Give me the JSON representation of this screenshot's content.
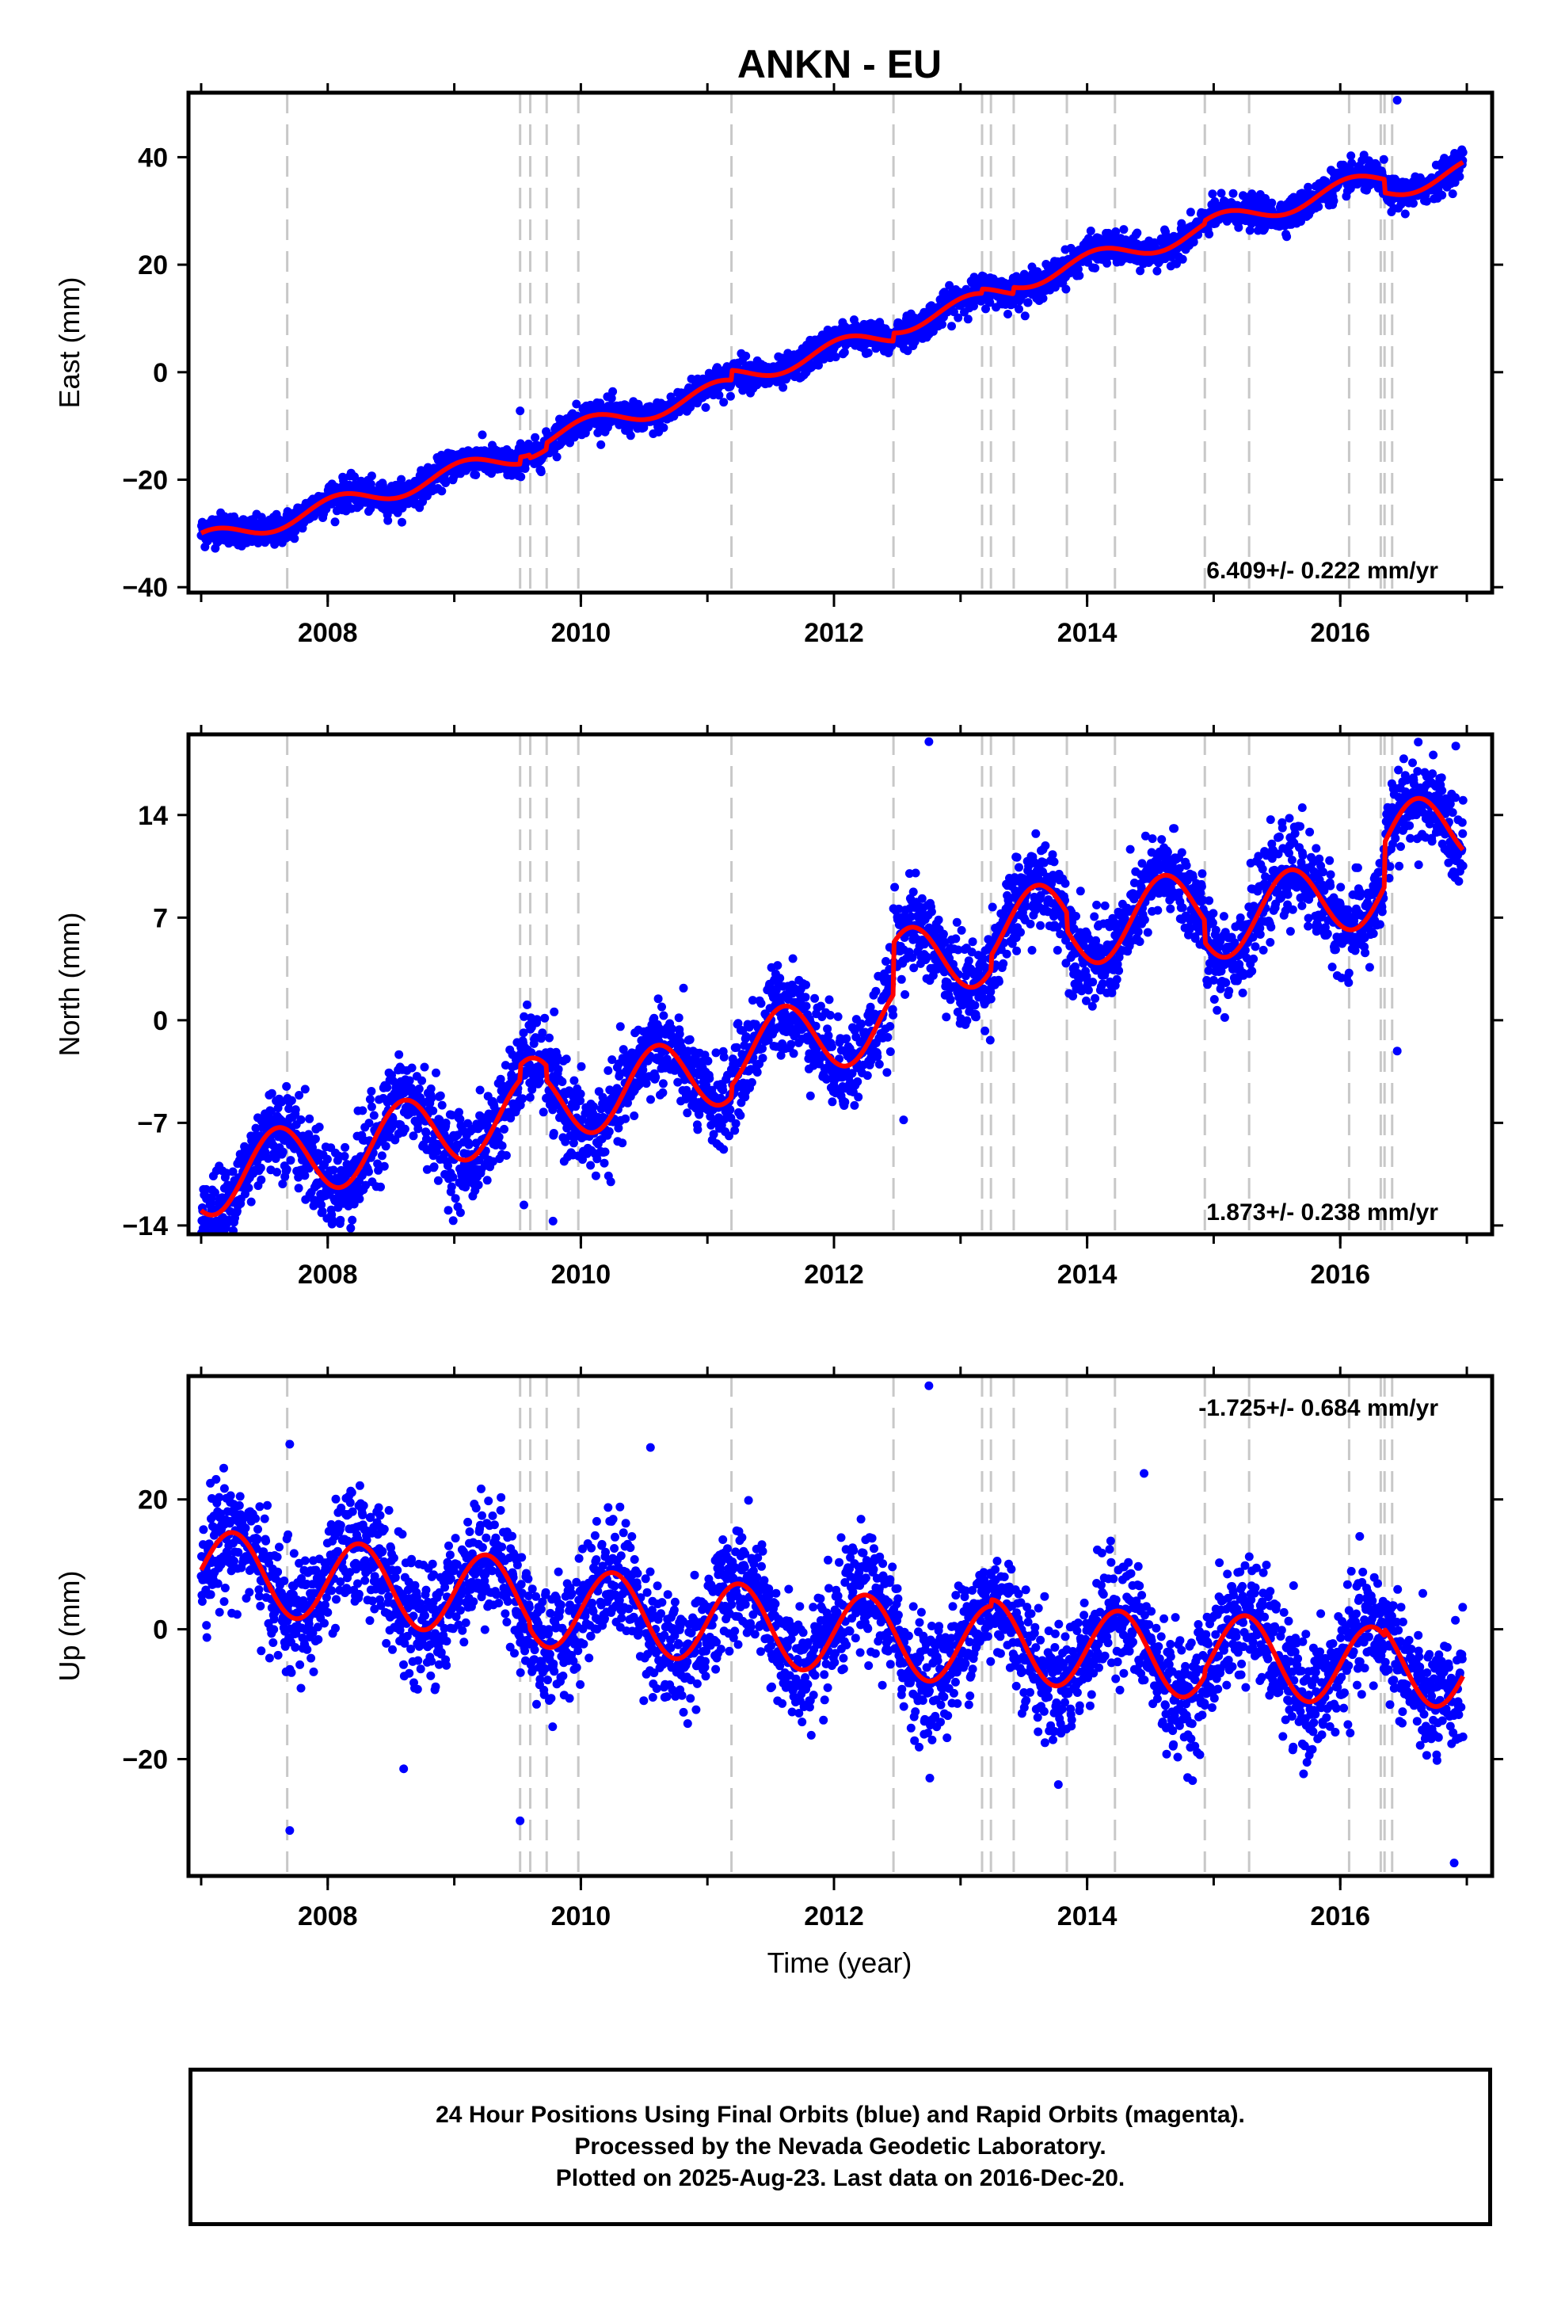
{
  "title": "ANKN - EU",
  "x_axis_label": "Time (year)",
  "x_ticks": [
    "2008",
    "2010",
    "2012",
    "2014",
    "2016"
  ],
  "footer": {
    "line1": "24 Hour Positions Using Final Orbits (blue) and Rapid Orbits (magenta).",
    "line2": "Processed by the Nevada Geodetic Laboratory.",
    "line3": "Plotted on 2025-Aug-23. Last data on 2016-Dec-20."
  },
  "colors": {
    "points": "#0000ff",
    "model": "#ff0000",
    "steps": "#c8c8c8",
    "frame": "#000000"
  },
  "chart_data": [
    {
      "type": "scatter",
      "ylabel": "East (mm)",
      "xlim": [
        2006.9,
        2017.2
      ],
      "ylim": [
        -41,
        52
      ],
      "yticks": [
        -40,
        -20,
        0,
        20,
        40
      ],
      "yticklabels": [
        "−40",
        "−20",
        "0",
        "20",
        "40"
      ],
      "rate_text": "6.409+/- 0.222 mm/yr",
      "rate_position": "bottom-right",
      "step_epochs": [
        2007.68,
        2009.52,
        2009.6,
        2009.73,
        2009.98,
        2011.19,
        2012.47,
        2013.17,
        2013.24,
        2013.42,
        2013.84,
        2014.22,
        2014.93,
        2015.28,
        2016.07,
        2016.32,
        2016.35,
        2016.41
      ],
      "model": {
        "start": 2007.0,
        "end": 2016.97,
        "ref_epoch": 2012.0,
        "offset": 0.5,
        "rate": 6.409,
        "annual_cos": 1.6,
        "annual_sin": 0.8,
        "jumps": [
          [
            2009.52,
            1.3
          ],
          [
            2009.6,
            -0.6
          ],
          [
            2009.73,
            1.2
          ],
          [
            2011.19,
            1.8
          ],
          [
            2012.47,
            1.5
          ],
          [
            2013.17,
            0.8
          ],
          [
            2013.42,
            1.2
          ],
          [
            2014.93,
            0.6
          ],
          [
            2016.35,
            -2.5
          ]
        ]
      },
      "scatter_sigma": 1.4,
      "points_approx_count": 3300,
      "outliers": [
        [
          2016.45,
          50.6
        ],
        [
          2009.52,
          -7.2
        ]
      ]
    },
    {
      "type": "scatter",
      "ylabel": "North (mm)",
      "xlim": [
        2006.9,
        2017.2
      ],
      "ylim": [
        -14.6,
        19.5
      ],
      "yticks": [
        -14,
        -7,
        0,
        7,
        14
      ],
      "yticklabels": [
        "−14",
        "−7",
        "0",
        "7",
        "14"
      ],
      "rate_text": "1.873+/- 0.238 mm/yr",
      "rate_position": "bottom-right",
      "step_epochs": [
        2007.68,
        2009.52,
        2009.6,
        2009.73,
        2009.98,
        2011.19,
        2012.47,
        2013.17,
        2013.24,
        2013.42,
        2013.84,
        2014.22,
        2014.93,
        2015.28,
        2016.07,
        2016.32,
        2016.35,
        2016.41
      ],
      "model": {
        "start": 2007.0,
        "end": 2016.97,
        "ref_epoch": 2012.0,
        "offset": -1.6,
        "rate": 1.873,
        "annual_cos": -2.0,
        "annual_sin": -1.5,
        "jumps": [
          [
            2009.52,
            1.0
          ],
          [
            2009.73,
            -1.0
          ],
          [
            2011.19,
            0.8
          ],
          [
            2012.47,
            3.5
          ],
          [
            2013.24,
            1.0
          ],
          [
            2013.84,
            -1.2
          ],
          [
            2014.93,
            -1.5
          ],
          [
            2016.35,
            3.0
          ]
        ]
      },
      "scatter_sigma": 1.5,
      "points_approx_count": 3300,
      "outliers": [
        [
          2012.75,
          19.0
        ],
        [
          2015.7,
          14.5
        ],
        [
          2016.97,
          15.0
        ],
        [
          2009.55,
          -12.6
        ],
        [
          2009.78,
          -13.7
        ],
        [
          2012.55,
          -6.8
        ],
        [
          2016.45,
          -2.1
        ]
      ]
    },
    {
      "type": "scatter",
      "ylabel": "Up (mm)",
      "xlim": [
        2006.9,
        2017.2
      ],
      "ylim": [
        -38,
        39
      ],
      "yticks": [
        -20,
        0,
        20
      ],
      "yticklabels": [
        "−20",
        "0",
        "20"
      ],
      "rate_text": "-1.725+/- 0.684 mm/yr",
      "rate_position": "top-right",
      "step_epochs": [
        2007.68,
        2009.52,
        2009.6,
        2009.73,
        2009.98,
        2011.19,
        2012.47,
        2013.17,
        2013.24,
        2013.42,
        2013.84,
        2014.22,
        2014.93,
        2015.28,
        2016.07,
        2016.32,
        2016.35,
        2016.41
      ],
      "model": {
        "start": 2007.0,
        "end": 2016.97,
        "ref_epoch": 2012.0,
        "offset": 0.5,
        "rate": -1.725,
        "annual_cos": 0.0,
        "annual_sin": 6.2,
        "jumps": [
          [
            2009.6,
            -1.0
          ],
          [
            2013.24,
            1.0
          ],
          [
            2014.93,
            1.0
          ],
          [
            2016.35,
            1.0
          ]
        ]
      },
      "scatter_sigma": 4.5,
      "points_approx_count": 3300,
      "outliers": [
        [
          2012.75,
          37.5
        ],
        [
          2007.7,
          28.5
        ],
        [
          2010.55,
          28.0
        ],
        [
          2007.7,
          -31.0
        ],
        [
          2009.52,
          -29.5
        ],
        [
          2016.9,
          -36.0
        ],
        [
          2008.6,
          -21.5
        ],
        [
          2014.45,
          24.0
        ]
      ]
    }
  ]
}
